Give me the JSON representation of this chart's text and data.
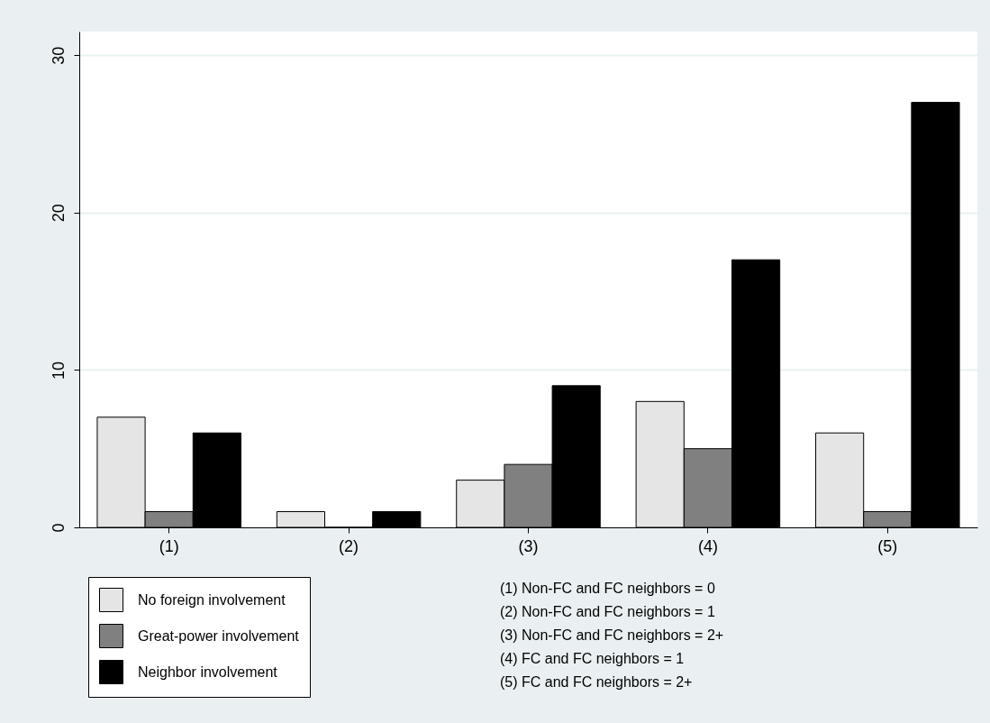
{
  "chart_data": {
    "type": "bar",
    "categories": [
      "(1)",
      "(2)",
      "(3)",
      "(4)",
      "(5)"
    ],
    "series": [
      {
        "name": "No foreign involvement",
        "color": "#e5e5e5",
        "values": [
          7,
          1,
          3,
          8,
          6
        ]
      },
      {
        "name": "Great-power involvement",
        "color": "#808080",
        "values": [
          1,
          0,
          4,
          5,
          1
        ]
      },
      {
        "name": "Neighbor involvement",
        "color": "#000000",
        "values": [
          6,
          1,
          9,
          17,
          27
        ]
      }
    ],
    "ylim": [
      0,
      31.5
    ],
    "yticks": [
      0,
      10,
      20,
      30
    ],
    "grid": "y",
    "legend": "bottom left",
    "annotations": [
      "(1) Non-FC and FC neighbors = 0",
      "(2) Non-FC and FC neighbors = 1",
      "(3) Non-FC and FC neighbors = 2+",
      "(4) FC and FC neighbors = 1",
      "(5) FC and FC neighbors = 2+"
    ]
  }
}
